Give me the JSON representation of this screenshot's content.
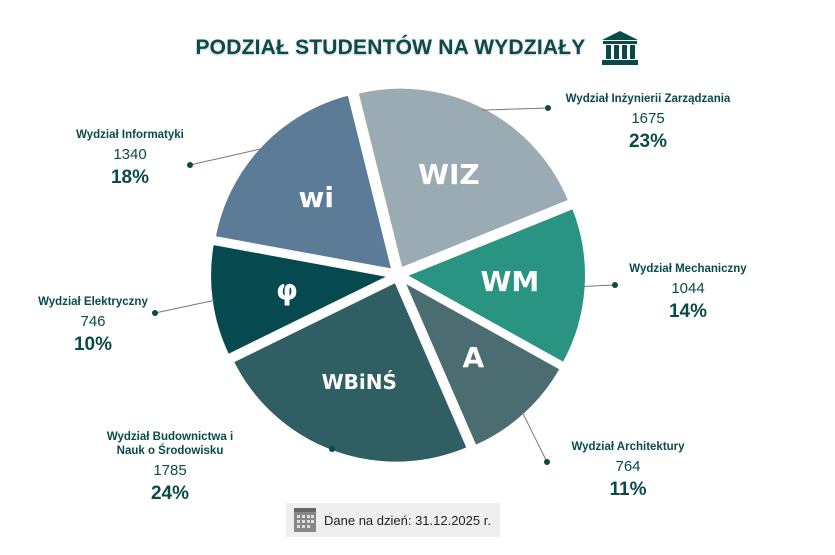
{
  "title": "PODZIAŁ STUDENTÓW NA WYDZIAŁY",
  "footer": {
    "text": "Dane na dzień: 31.12.2025 r.",
    "icon": "calendar-icon"
  },
  "chart_data": {
    "type": "pie",
    "title": "PODZIAŁ STUDENTÓW NA WYDZIAŁY",
    "slices": [
      {
        "label": "Wydział Inżynierii Zarządzania",
        "value": 1675,
        "percent": "23%",
        "color": "#9aabb4",
        "logo": "WIZ"
      },
      {
        "label": "Wydział Mechaniczny",
        "value": 1044,
        "percent": "14%",
        "color": "#2a9482",
        "logo": "WM"
      },
      {
        "label": "Wydział Architektury",
        "value": 764,
        "percent": "11%",
        "color": "#4b6d71",
        "logo": "A"
      },
      {
        "label": "Wydział Budownictwa i Nauk o Środowisku",
        "value": 1785,
        "percent": "24%",
        "color": "#2f5f63",
        "logo": "WBiNŚ"
      },
      {
        "label": "Wydział Elektryczny",
        "value": 746,
        "percent": "10%",
        "color": "#064a50",
        "logo": "φ"
      },
      {
        "label": "Wydział Informatyki",
        "value": 1340,
        "percent": "18%",
        "color": "#5b7b97",
        "logo": "wi"
      }
    ]
  }
}
